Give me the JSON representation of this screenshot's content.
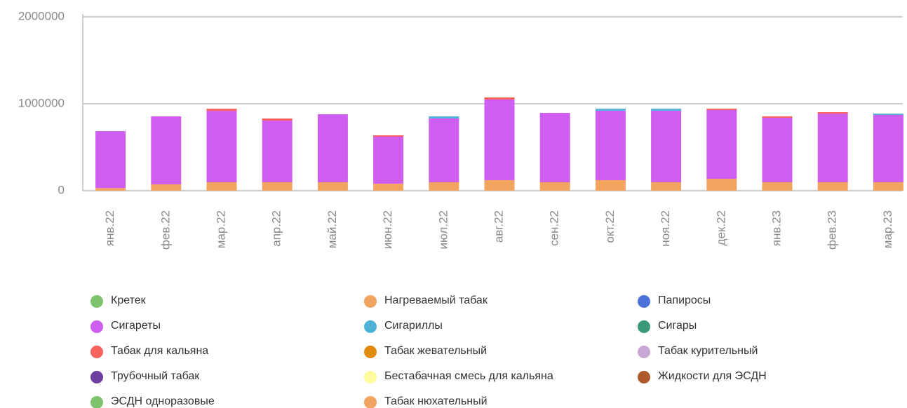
{
  "chart_data": {
    "type": "stacked_bar",
    "categories": [
      "янв.22",
      "фев.22",
      "мар.22",
      "апр.22",
      "май.22",
      "июн.22",
      "июл.22",
      "авг.22",
      "сен.22",
      "окт.22",
      "ноя.22",
      "дек.22",
      "янв.23",
      "фев.23",
      "мар.23"
    ],
    "ylim": [
      0,
      2000000
    ],
    "yticks": [
      0,
      1000000,
      2000000
    ],
    "grid": true,
    "series": [
      {
        "name": "Кретек",
        "color": "#7dc36b",
        "values": [
          0,
          0,
          0,
          0,
          0,
          0,
          0,
          0,
          0,
          0,
          0,
          0,
          0,
          0,
          0
        ]
      },
      {
        "name": "Нагреваемый табак",
        "color": "#f0a460",
        "values": [
          30000,
          73000,
          97000,
          97000,
          97000,
          81000,
          97000,
          121000,
          97000,
          121000,
          97000,
          137000,
          97000,
          97000,
          97000
        ]
      },
      {
        "name": "Папиросы",
        "color": "#4a72d8",
        "values": [
          0,
          0,
          0,
          0,
          0,
          0,
          0,
          0,
          0,
          0,
          0,
          0,
          0,
          0,
          0
        ]
      },
      {
        "name": "Сигареты",
        "color": "#cf5ef0",
        "values": [
          655000,
          782000,
          822000,
          709000,
          782000,
          540000,
          734000,
          928000,
          798000,
          799000,
          823000,
          791000,
          742000,
          790000,
          774000
        ]
      },
      {
        "name": "Сигариллы",
        "color": "#4fb3d9",
        "values": [
          0,
          0,
          0,
          0,
          0,
          0,
          24000,
          0,
          0,
          24000,
          24000,
          0,
          0,
          0,
          16000
        ]
      },
      {
        "name": "Сигары",
        "color": "#3a9a77",
        "values": [
          0,
          0,
          0,
          0,
          0,
          0,
          0,
          0,
          0,
          0,
          0,
          0,
          0,
          0,
          0
        ]
      },
      {
        "name": "Табак для кальяна",
        "color": "#f8625f",
        "values": [
          0,
          0,
          24000,
          24000,
          0,
          16000,
          0,
          24000,
          0,
          0,
          0,
          16000,
          16000,
          16000,
          0
        ]
      },
      {
        "name": "Табак жевательный",
        "color": "#e38a10",
        "values": [
          0,
          0,
          0,
          0,
          0,
          0,
          0,
          0,
          0,
          0,
          0,
          0,
          0,
          0,
          0
        ]
      },
      {
        "name": "Табак курительный",
        "color": "#c9a8d6",
        "values": [
          0,
          0,
          0,
          0,
          0,
          0,
          0,
          0,
          0,
          0,
          0,
          0,
          0,
          0,
          0
        ]
      },
      {
        "name": "Трубочный табак",
        "color": "#6b3fa0",
        "values": [
          0,
          0,
          0,
          0,
          0,
          0,
          0,
          0,
          0,
          0,
          0,
          0,
          0,
          0,
          0
        ]
      },
      {
        "name": "Бестабачная смесь для кальяна",
        "color": "#fdfb9c",
        "values": [
          0,
          0,
          0,
          0,
          0,
          0,
          0,
          0,
          0,
          0,
          0,
          0,
          0,
          0,
          0
        ]
      },
      {
        "name": "Жидкости для ЭСДН",
        "color": "#b0592a",
        "values": [
          0,
          0,
          0,
          0,
          0,
          0,
          0,
          0,
          0,
          0,
          0,
          0,
          0,
          0,
          0
        ]
      },
      {
        "name": "ЭСДН одноразовые",
        "color": "#7dc36b",
        "values": [
          0,
          0,
          0,
          0,
          0,
          0,
          0,
          0,
          0,
          0,
          0,
          0,
          0,
          0,
          0
        ]
      },
      {
        "name": "Табак нюхательный",
        "color": "#f0a460",
        "values": [
          0,
          0,
          0,
          0,
          0,
          0,
          0,
          0,
          0,
          0,
          0,
          0,
          0,
          0,
          0
        ]
      }
    ]
  }
}
